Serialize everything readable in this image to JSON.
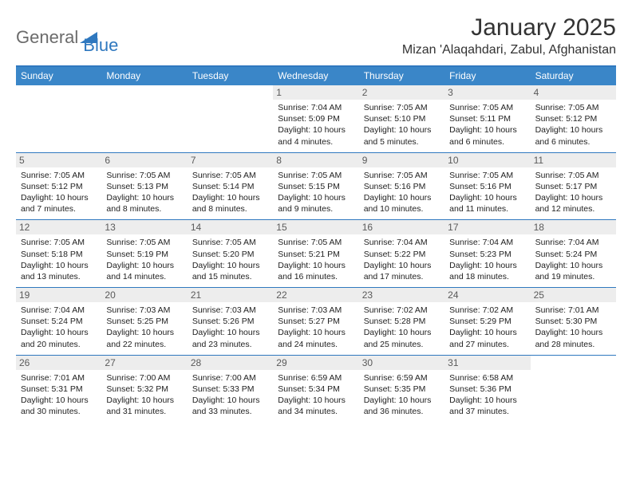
{
  "brand": {
    "general": "General",
    "blue": "Blue",
    "mark_color": "#2f78bf",
    "text_gray": "#6b6b6b"
  },
  "title": "January 2025",
  "location": "Mizan 'Alaqahdari, Zabul, Afghanistan",
  "colors": {
    "header_bar": "#3a86c8",
    "rule": "#2f78bf",
    "daynum_bg": "#ededed",
    "text": "#222222",
    "white": "#ffffff"
  },
  "dow": [
    "Sunday",
    "Monday",
    "Tuesday",
    "Wednesday",
    "Thursday",
    "Friday",
    "Saturday"
  ],
  "weeks": [
    [
      {
        "n": "",
        "sr": "",
        "ss": "",
        "dl1": "",
        "dl2": ""
      },
      {
        "n": "",
        "sr": "",
        "ss": "",
        "dl1": "",
        "dl2": ""
      },
      {
        "n": "",
        "sr": "",
        "ss": "",
        "dl1": "",
        "dl2": ""
      },
      {
        "n": "1",
        "sr": "Sunrise: 7:04 AM",
        "ss": "Sunset: 5:09 PM",
        "dl1": "Daylight: 10 hours",
        "dl2": "and 4 minutes."
      },
      {
        "n": "2",
        "sr": "Sunrise: 7:05 AM",
        "ss": "Sunset: 5:10 PM",
        "dl1": "Daylight: 10 hours",
        "dl2": "and 5 minutes."
      },
      {
        "n": "3",
        "sr": "Sunrise: 7:05 AM",
        "ss": "Sunset: 5:11 PM",
        "dl1": "Daylight: 10 hours",
        "dl2": "and 6 minutes."
      },
      {
        "n": "4",
        "sr": "Sunrise: 7:05 AM",
        "ss": "Sunset: 5:12 PM",
        "dl1": "Daylight: 10 hours",
        "dl2": "and 6 minutes."
      }
    ],
    [
      {
        "n": "5",
        "sr": "Sunrise: 7:05 AM",
        "ss": "Sunset: 5:12 PM",
        "dl1": "Daylight: 10 hours",
        "dl2": "and 7 minutes."
      },
      {
        "n": "6",
        "sr": "Sunrise: 7:05 AM",
        "ss": "Sunset: 5:13 PM",
        "dl1": "Daylight: 10 hours",
        "dl2": "and 8 minutes."
      },
      {
        "n": "7",
        "sr": "Sunrise: 7:05 AM",
        "ss": "Sunset: 5:14 PM",
        "dl1": "Daylight: 10 hours",
        "dl2": "and 8 minutes."
      },
      {
        "n": "8",
        "sr": "Sunrise: 7:05 AM",
        "ss": "Sunset: 5:15 PM",
        "dl1": "Daylight: 10 hours",
        "dl2": "and 9 minutes."
      },
      {
        "n": "9",
        "sr": "Sunrise: 7:05 AM",
        "ss": "Sunset: 5:16 PM",
        "dl1": "Daylight: 10 hours",
        "dl2": "and 10 minutes."
      },
      {
        "n": "10",
        "sr": "Sunrise: 7:05 AM",
        "ss": "Sunset: 5:16 PM",
        "dl1": "Daylight: 10 hours",
        "dl2": "and 11 minutes."
      },
      {
        "n": "11",
        "sr": "Sunrise: 7:05 AM",
        "ss": "Sunset: 5:17 PM",
        "dl1": "Daylight: 10 hours",
        "dl2": "and 12 minutes."
      }
    ],
    [
      {
        "n": "12",
        "sr": "Sunrise: 7:05 AM",
        "ss": "Sunset: 5:18 PM",
        "dl1": "Daylight: 10 hours",
        "dl2": "and 13 minutes."
      },
      {
        "n": "13",
        "sr": "Sunrise: 7:05 AM",
        "ss": "Sunset: 5:19 PM",
        "dl1": "Daylight: 10 hours",
        "dl2": "and 14 minutes."
      },
      {
        "n": "14",
        "sr": "Sunrise: 7:05 AM",
        "ss": "Sunset: 5:20 PM",
        "dl1": "Daylight: 10 hours",
        "dl2": "and 15 minutes."
      },
      {
        "n": "15",
        "sr": "Sunrise: 7:05 AM",
        "ss": "Sunset: 5:21 PM",
        "dl1": "Daylight: 10 hours",
        "dl2": "and 16 minutes."
      },
      {
        "n": "16",
        "sr": "Sunrise: 7:04 AM",
        "ss": "Sunset: 5:22 PM",
        "dl1": "Daylight: 10 hours",
        "dl2": "and 17 minutes."
      },
      {
        "n": "17",
        "sr": "Sunrise: 7:04 AM",
        "ss": "Sunset: 5:23 PM",
        "dl1": "Daylight: 10 hours",
        "dl2": "and 18 minutes."
      },
      {
        "n": "18",
        "sr": "Sunrise: 7:04 AM",
        "ss": "Sunset: 5:24 PM",
        "dl1": "Daylight: 10 hours",
        "dl2": "and 19 minutes."
      }
    ],
    [
      {
        "n": "19",
        "sr": "Sunrise: 7:04 AM",
        "ss": "Sunset: 5:24 PM",
        "dl1": "Daylight: 10 hours",
        "dl2": "and 20 minutes."
      },
      {
        "n": "20",
        "sr": "Sunrise: 7:03 AM",
        "ss": "Sunset: 5:25 PM",
        "dl1": "Daylight: 10 hours",
        "dl2": "and 22 minutes."
      },
      {
        "n": "21",
        "sr": "Sunrise: 7:03 AM",
        "ss": "Sunset: 5:26 PM",
        "dl1": "Daylight: 10 hours",
        "dl2": "and 23 minutes."
      },
      {
        "n": "22",
        "sr": "Sunrise: 7:03 AM",
        "ss": "Sunset: 5:27 PM",
        "dl1": "Daylight: 10 hours",
        "dl2": "and 24 minutes."
      },
      {
        "n": "23",
        "sr": "Sunrise: 7:02 AM",
        "ss": "Sunset: 5:28 PM",
        "dl1": "Daylight: 10 hours",
        "dl2": "and 25 minutes."
      },
      {
        "n": "24",
        "sr": "Sunrise: 7:02 AM",
        "ss": "Sunset: 5:29 PM",
        "dl1": "Daylight: 10 hours",
        "dl2": "and 27 minutes."
      },
      {
        "n": "25",
        "sr": "Sunrise: 7:01 AM",
        "ss": "Sunset: 5:30 PM",
        "dl1": "Daylight: 10 hours",
        "dl2": "and 28 minutes."
      }
    ],
    [
      {
        "n": "26",
        "sr": "Sunrise: 7:01 AM",
        "ss": "Sunset: 5:31 PM",
        "dl1": "Daylight: 10 hours",
        "dl2": "and 30 minutes."
      },
      {
        "n": "27",
        "sr": "Sunrise: 7:00 AM",
        "ss": "Sunset: 5:32 PM",
        "dl1": "Daylight: 10 hours",
        "dl2": "and 31 minutes."
      },
      {
        "n": "28",
        "sr": "Sunrise: 7:00 AM",
        "ss": "Sunset: 5:33 PM",
        "dl1": "Daylight: 10 hours",
        "dl2": "and 33 minutes."
      },
      {
        "n": "29",
        "sr": "Sunrise: 6:59 AM",
        "ss": "Sunset: 5:34 PM",
        "dl1": "Daylight: 10 hours",
        "dl2": "and 34 minutes."
      },
      {
        "n": "30",
        "sr": "Sunrise: 6:59 AM",
        "ss": "Sunset: 5:35 PM",
        "dl1": "Daylight: 10 hours",
        "dl2": "and 36 minutes."
      },
      {
        "n": "31",
        "sr": "Sunrise: 6:58 AM",
        "ss": "Sunset: 5:36 PM",
        "dl1": "Daylight: 10 hours",
        "dl2": "and 37 minutes."
      },
      {
        "n": "",
        "sr": "",
        "ss": "",
        "dl1": "",
        "dl2": ""
      }
    ]
  ]
}
